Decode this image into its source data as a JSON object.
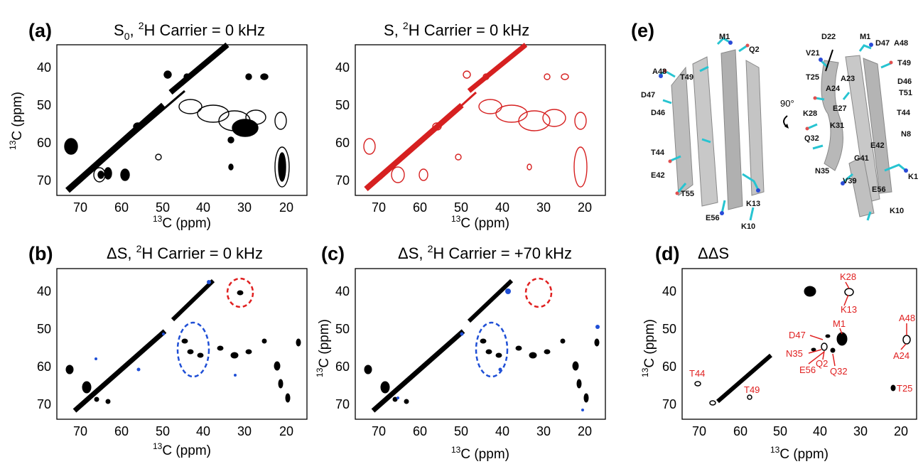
{
  "figure": {
    "panels": [
      {
        "id": "a",
        "letter": "(a)",
        "title_main": "S",
        "title_sub": "0",
        "title_sup": "2",
        "title_rest": "H Carrier = 0 kHz",
        "spectrum_color": "#000000"
      },
      {
        "id": "a2",
        "letter": "",
        "title_main": "S",
        "title_sub": "",
        "title_sup": "2",
        "title_rest": "H Carrier = 0 kHz",
        "spectrum_color": "#d62020"
      },
      {
        "id": "b",
        "letter": "(b)",
        "title_main": "ΔS",
        "title_sub": "",
        "title_sup": "2",
        "title_rest": "H Carrier = 0 kHz",
        "spectrum_color": "#000000"
      },
      {
        "id": "c",
        "letter": "(c)",
        "title_main": "ΔS",
        "title_sub": "",
        "title_sup": "2",
        "title_rest": "H Carrier = +70 kHz",
        "spectrum_color": "#000000"
      },
      {
        "id": "d",
        "letter": "(d)",
        "title_main": "ΔΔS",
        "title_sub": "",
        "title_sup": "",
        "title_rest": "",
        "spectrum_color": "#000000"
      }
    ],
    "axis": {
      "x_label_sup": "13",
      "x_label_rest": "C (ppm)",
      "y_label_sup": "13",
      "y_label_rest": "C (ppm)",
      "x_ticks": [
        "70",
        "60",
        "50",
        "40",
        "30",
        "20"
      ],
      "y_ticks": [
        "40",
        "50",
        "60",
        "70"
      ]
    },
    "panel_d_assignments": [
      "K28",
      "K13",
      "A48",
      "D47",
      "M1",
      "N35",
      "E56",
      "Q2",
      "Q32",
      "A24",
      "T44",
      "T49",
      "T25"
    ],
    "structure": {
      "letter": "(e)",
      "rotation_label": "90°",
      "view1_labels": [
        "M1",
        "Q2",
        "A48",
        "T49",
        "D47",
        "D46",
        "T44",
        "E42",
        "T55",
        "K13",
        "E56",
        "K10"
      ],
      "view2_labels": [
        "D22",
        "M1",
        "D47",
        "A48",
        "V21",
        "T49",
        "D46",
        "T25",
        "A23",
        "T51",
        "A24",
        "E27",
        "K28",
        "T44",
        "K31",
        "N8",
        "Q32",
        "E42",
        "G41",
        "N35",
        "K1",
        "V39",
        "E56",
        "K10"
      ]
    },
    "colors": {
      "black": "#000000",
      "red_spectrum": "#d62020",
      "blue_peak": "#1f4fd6",
      "red_label": "#e02020",
      "cyan_sidechain": "#27c4d1",
      "ribbon": "#b9b9b9"
    }
  }
}
